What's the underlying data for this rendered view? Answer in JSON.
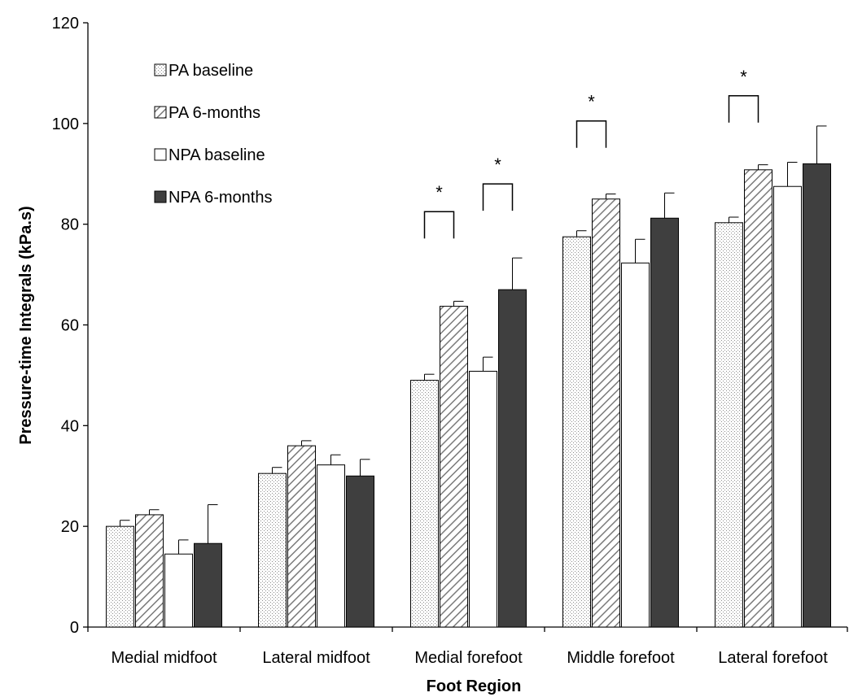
{
  "chart_data": {
    "type": "bar",
    "title": "",
    "xlabel": "Foot Region",
    "ylabel": "Pressure-time Integrals (kPa.s)",
    "ylim": [
      0,
      120
    ],
    "yticks": [
      0,
      20,
      40,
      60,
      80,
      100,
      120
    ],
    "categories": [
      "Medial midfoot",
      "Lateral midfoot",
      "Medial forefoot",
      "Middle forefoot",
      "Lateral forefoot"
    ],
    "series": [
      {
        "name": "PA baseline",
        "pattern": "dots",
        "color": "#ffffff",
        "values": [
          20,
          30.5,
          49,
          77.5,
          80.3
        ],
        "errors": [
          1.2,
          1.2,
          1.2,
          1.2,
          1.1
        ]
      },
      {
        "name": "PA 6-months",
        "pattern": "hatch",
        "color": "#ffffff",
        "values": [
          22.3,
          36,
          63.7,
          85,
          90.8
        ],
        "errors": [
          1,
          1,
          1,
          1,
          1
        ]
      },
      {
        "name": "NPA baseline",
        "pattern": "none",
        "color": "#ffffff",
        "values": [
          14.5,
          32.2,
          50.8,
          72.3,
          87.5
        ],
        "errors": [
          2.8,
          2,
          2.8,
          4.7,
          4.8
        ]
      },
      {
        "name": "NPA 6-months",
        "pattern": "solid",
        "color": "#3f3f3f",
        "values": [
          16.6,
          30,
          67,
          81.2,
          92
        ],
        "errors": [
          7.7,
          3.3,
          6.3,
          5,
          7.5
        ]
      }
    ],
    "significance": [
      {
        "category": 2,
        "from_series": 0,
        "to_series": 1,
        "y": 82.5,
        "label": "*"
      },
      {
        "category": 2,
        "from_series": 2,
        "to_series": 3,
        "y": 88,
        "label": "*"
      },
      {
        "category": 3,
        "from_series": 0,
        "to_series": 1,
        "y": 100.5,
        "label": "*"
      },
      {
        "category": 4,
        "from_series": 0,
        "to_series": 1,
        "y": 105.5,
        "label": "*"
      }
    ],
    "legend_position": "top-left",
    "grid": false
  }
}
